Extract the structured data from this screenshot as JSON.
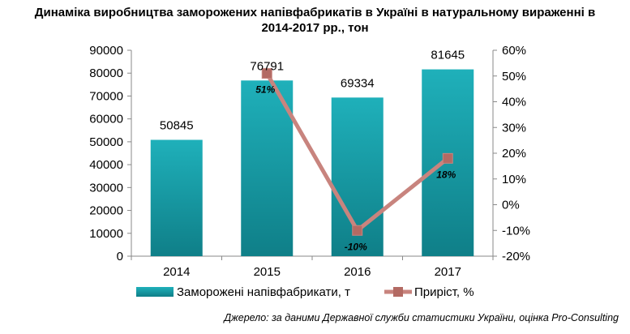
{
  "title_line1": "Динаміка виробництва заморожених напівфабрикатів в Україні в натуральному вираженні в",
  "title_line2": "2014-2017 рр., тон",
  "source": "Джерело: за даними Державної служби статистики України, оцінка Pro-Consulting",
  "chart_data": {
    "type": "bar",
    "title": "Динаміка виробництва заморожених напівфабрикатів в Україні в натуральному вираженні в 2014-2017 рр., тон",
    "categories": [
      "2014",
      "2015",
      "2016",
      "2017"
    ],
    "series": [
      {
        "name": "Заморожені напівфабрикати, т",
        "type": "bar",
        "axis": "left",
        "values": [
          50845,
          76791,
          69334,
          81645
        ],
        "labels": [
          "50845",
          "76791",
          "69334",
          "81645"
        ],
        "color": "#1aa3ad"
      },
      {
        "name": "Приріст, %",
        "type": "line",
        "axis": "right",
        "values": [
          null,
          51,
          -10,
          18
        ],
        "labels": [
          "",
          "51%",
          "-10%",
          "18%"
        ],
        "color": "#c8847e",
        "marker_color": "#b36a63"
      }
    ],
    "left_axis": {
      "min": 0,
      "max": 90000,
      "step": 10000,
      "tick_labels": [
        "0",
        "10000",
        "20000",
        "30000",
        "40000",
        "50000",
        "60000",
        "70000",
        "80000",
        "90000"
      ]
    },
    "right_axis": {
      "min": -20,
      "max": 60,
      "step": 10,
      "tick_labels": [
        "-20%",
        "-10%",
        "0%",
        "10%",
        "20%",
        "30%",
        "40%",
        "50%",
        "60%"
      ]
    },
    "grid": false,
    "legend_position": "bottom"
  }
}
